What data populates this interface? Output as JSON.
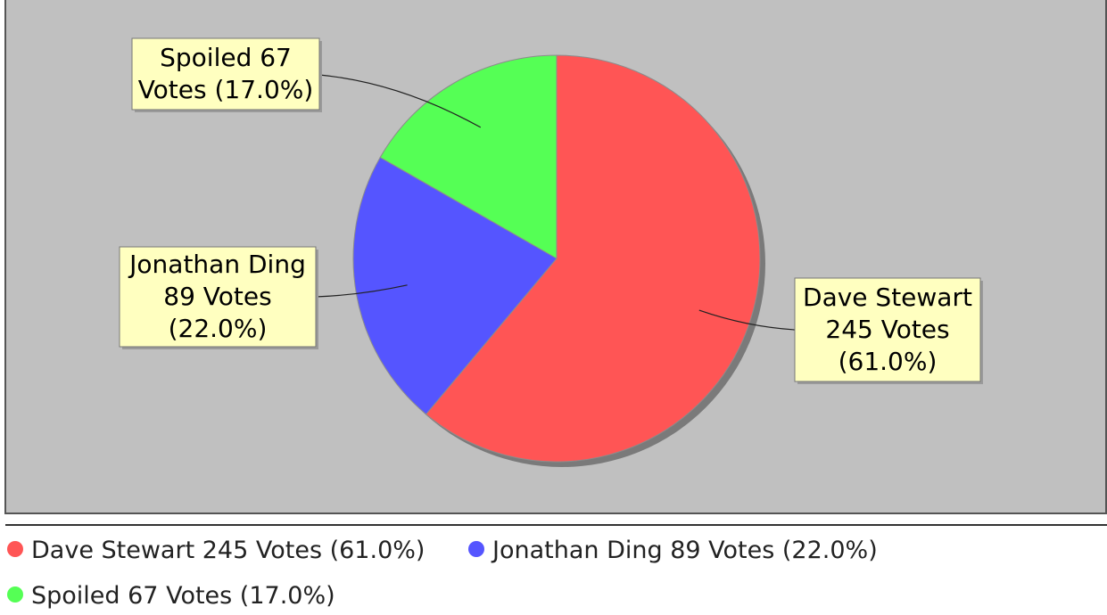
{
  "chart_data": {
    "type": "pie",
    "title": "",
    "slices": [
      {
        "label": "Dave Stewart",
        "value": 245,
        "percent": 61.0,
        "color": "#ff5555",
        "label_lines": [
          "Dave Stewart",
          "245 Votes",
          "(61.0%)"
        ],
        "legend": "Dave Stewart 245 Votes (61.0%)"
      },
      {
        "label": "Jonathan Ding",
        "value": 89,
        "percent": 22.0,
        "color": "#5555ff",
        "label_lines": [
          "Jonathan Ding",
          "89 Votes",
          "(22.0%)"
        ],
        "legend": "Jonathan Ding 89 Votes (22.0%)"
      },
      {
        "label": "Spoiled",
        "value": 67,
        "percent": 17.0,
        "color": "#55ff55",
        "label_lines": [
          "Spoiled 67",
          "Votes (17.0%)"
        ],
        "legend": "Spoiled 67 Votes (17.0%)"
      }
    ],
    "start_angle_deg": 90,
    "direction": "clockwise",
    "legend_position": "bottom",
    "plot_background": "#c0c0c0",
    "label_box_color": "#ffffc0"
  }
}
